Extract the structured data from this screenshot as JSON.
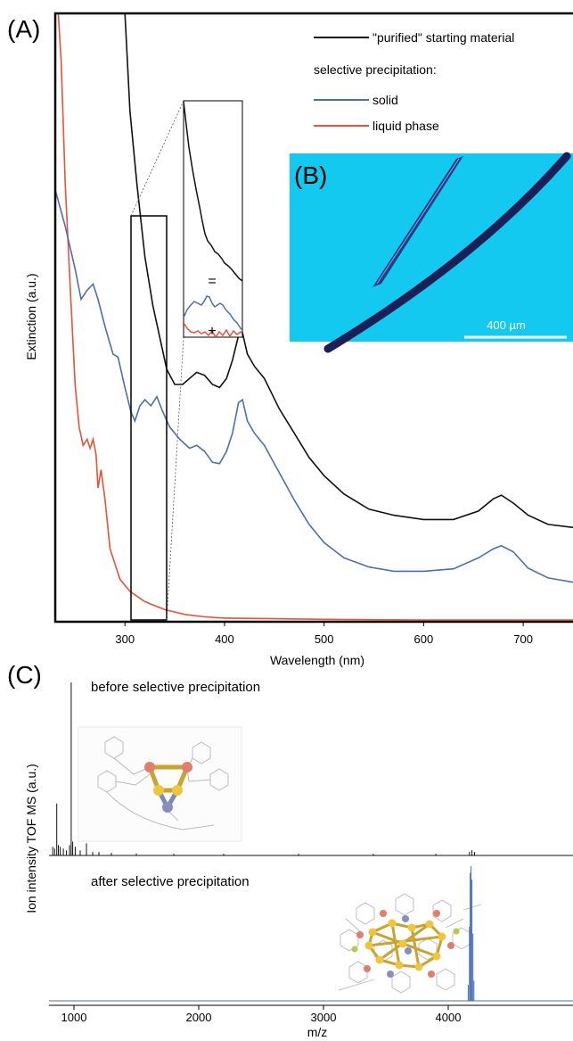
{
  "panel_labels": {
    "a": "(A)",
    "b": "(B)",
    "c": "(C)"
  },
  "colors": {
    "starting": "#111111",
    "solid": "#4a6fb5",
    "liquid": "#e8513a",
    "micrograph_bg": "#13c9ef",
    "rod": "#1a1f57"
  },
  "inset_glyphs": {
    "equals": "=",
    "plus": "+"
  },
  "micrograph": {
    "scale_bar_label": "400 µm"
  },
  "chart_data": [
    {
      "type": "line",
      "title": "",
      "xlabel": "Wavelength (nm)",
      "ylabel": "Extinction (a.u.)",
      "xlim": [
        230,
        750
      ],
      "ylim": [
        0,
        1.0
      ],
      "x_ticks": [
        300,
        400,
        500,
        600,
        700
      ],
      "legend": {
        "placement": "top-right",
        "group_heading": "selective precipitation:",
        "entries": [
          "\"purified\" starting material",
          "solid",
          "liquid phase"
        ]
      },
      "series": [
        {
          "name": "\"purified\" starting material",
          "color": "#111111",
          "points": [
            [
              300,
              1.0
            ],
            [
              305,
              0.84
            ],
            [
              312,
              0.72
            ],
            [
              320,
              0.6
            ],
            [
              328,
              0.52
            ],
            [
              336,
              0.46
            ],
            [
              342,
              0.415
            ],
            [
              350,
              0.39
            ],
            [
              358,
              0.39
            ],
            [
              365,
              0.4
            ],
            [
              372,
              0.41
            ],
            [
              380,
              0.405
            ],
            [
              388,
              0.39
            ],
            [
              395,
              0.385
            ],
            [
              402,
              0.4
            ],
            [
              408,
              0.43
            ],
            [
              414,
              0.47
            ],
            [
              418,
              0.475
            ],
            [
              423,
              0.44
            ],
            [
              430,
              0.42
            ],
            [
              440,
              0.4
            ],
            [
              455,
              0.35
            ],
            [
              470,
              0.31
            ],
            [
              485,
              0.27
            ],
            [
              500,
              0.24
            ],
            [
              520,
              0.21
            ],
            [
              545,
              0.185
            ],
            [
              570,
              0.175
            ],
            [
              600,
              0.168
            ],
            [
              630,
              0.168
            ],
            [
              655,
              0.182
            ],
            [
              670,
              0.202
            ],
            [
              678,
              0.208
            ],
            [
              690,
              0.195
            ],
            [
              705,
              0.175
            ],
            [
              725,
              0.16
            ],
            [
              750,
              0.155
            ]
          ]
        },
        {
          "name": "solid",
          "color": "#4a6fb5",
          "points": [
            [
              230,
              0.71
            ],
            [
              240,
              0.65
            ],
            [
              250,
              0.58
            ],
            [
              256,
              0.53
            ],
            [
              262,
              0.545
            ],
            [
              268,
              0.555
            ],
            [
              273,
              0.53
            ],
            [
              280,
              0.485
            ],
            [
              288,
              0.44
            ],
            [
              293,
              0.435
            ],
            [
              300,
              0.385
            ],
            [
              306,
              0.345
            ],
            [
              310,
              0.33
            ],
            [
              315,
              0.355
            ],
            [
              320,
              0.365
            ],
            [
              326,
              0.355
            ],
            [
              332,
              0.37
            ],
            [
              338,
              0.345
            ],
            [
              345,
              0.32
            ],
            [
              355,
              0.3
            ],
            [
              365,
              0.285
            ],
            [
              372,
              0.29
            ],
            [
              380,
              0.28
            ],
            [
              388,
              0.262
            ],
            [
              395,
              0.26
            ],
            [
              402,
              0.28
            ],
            [
              408,
              0.31
            ],
            [
              414,
              0.36
            ],
            [
              418,
              0.365
            ],
            [
              423,
              0.33
            ],
            [
              430,
              0.31
            ],
            [
              440,
              0.29
            ],
            [
              455,
              0.245
            ],
            [
              470,
              0.2
            ],
            [
              485,
              0.16
            ],
            [
              500,
              0.13
            ],
            [
              520,
              0.105
            ],
            [
              545,
              0.09
            ],
            [
              570,
              0.083
            ],
            [
              600,
              0.083
            ],
            [
              630,
              0.087
            ],
            [
              655,
              0.105
            ],
            [
              670,
              0.12
            ],
            [
              678,
              0.125
            ],
            [
              690,
              0.115
            ],
            [
              705,
              0.088
            ],
            [
              725,
              0.072
            ],
            [
              750,
              0.065
            ]
          ]
        },
        {
          "name": "liquid phase",
          "color": "#e8513a",
          "points": [
            [
              233,
              1.0
            ],
            [
              236,
              0.92
            ],
            [
              240,
              0.72
            ],
            [
              245,
              0.55
            ],
            [
              250,
              0.39
            ],
            [
              254,
              0.32
            ],
            [
              258,
              0.29
            ],
            [
              262,
              0.3
            ],
            [
              265,
              0.285
            ],
            [
              268,
              0.3
            ],
            [
              271,
              0.275
            ],
            [
              273,
              0.22
            ],
            [
              276,
              0.25
            ],
            [
              280,
              0.2
            ],
            [
              285,
              0.12
            ],
            [
              295,
              0.07
            ],
            [
              305,
              0.05
            ],
            [
              320,
              0.033
            ],
            [
              340,
              0.02
            ],
            [
              360,
              0.012
            ],
            [
              380,
              0.008
            ],
            [
              400,
              0.006
            ],
            [
              450,
              0.005
            ],
            [
              500,
              0.004
            ],
            [
              600,
              0.003
            ],
            [
              700,
              0.003
            ],
            [
              750,
              0.003
            ]
          ]
        }
      ]
    },
    {
      "type": "bar",
      "title": "before selective precipitation",
      "xlabel": "m/z",
      "ylabel": "Ion intensity TOF MS (a.u.)",
      "xlim": [
        800,
        5000
      ],
      "x_ticks": [
        1000,
        2000,
        3000,
        4000
      ],
      "ylim": [
        0,
        1.0
      ],
      "series": [
        {
          "name": "",
          "color": "#111111",
          "peaks": [
            [
              830,
              0.05
            ],
            [
              845,
              0.04
            ],
            [
              862,
              0.3
            ],
            [
              875,
              0.06
            ],
            [
              890,
              0.05
            ],
            [
              915,
              0.04
            ],
            [
              940,
              0.03
            ],
            [
              965,
              0.06
            ],
            [
              978,
              1.0
            ],
            [
              990,
              0.08
            ],
            [
              1010,
              0.05
            ],
            [
              1050,
              0.03
            ],
            [
              1100,
              0.07
            ],
            [
              1150,
              0.02
            ],
            [
              1200,
              0.02
            ],
            [
              1300,
              0.015
            ],
            [
              1500,
              0.012
            ],
            [
              1800,
              0.01
            ],
            [
              2200,
              0.01
            ],
            [
              2800,
              0.01
            ],
            [
              3400,
              0.01
            ],
            [
              3900,
              0.01
            ],
            [
              4170,
              0.02
            ],
            [
              4190,
              0.03
            ],
            [
              4210,
              0.02
            ]
          ]
        }
      ]
    },
    {
      "type": "bar",
      "title": "after selective precipitation",
      "xlabel": "m/z",
      "ylabel": "Ion intensity TOF MS (a.u.)",
      "xlim": [
        800,
        5000
      ],
      "x_ticks": [
        1000,
        2000,
        3000,
        4000
      ],
      "ylim": [
        0,
        1.0
      ],
      "series": [
        {
          "name": "",
          "color": "#4a6fb5",
          "peaks": [
            [
              4160,
              0.12
            ],
            [
              4170,
              0.55
            ],
            [
              4176,
              0.95
            ],
            [
              4183,
              1.0
            ],
            [
              4190,
              0.9
            ],
            [
              4198,
              0.5
            ],
            [
              4206,
              0.15
            ]
          ]
        }
      ]
    }
  ]
}
